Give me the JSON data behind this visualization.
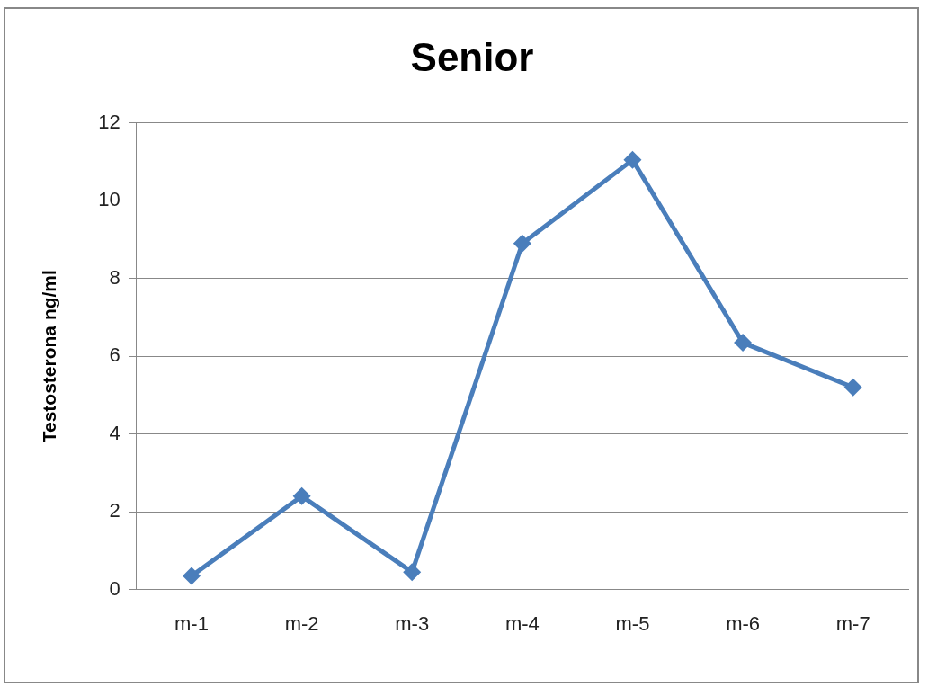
{
  "chart_data": {
    "type": "line",
    "title": "Senior",
    "ylabel": "Testosterona ng/ml",
    "categories": [
      "m-1",
      "m-2",
      "m-3",
      "m-4",
      "m-5",
      "m-6",
      "m-7"
    ],
    "series": [
      {
        "color": "#4a7ebb",
        "values": [
          0.35,
          2.4,
          0.45,
          8.9,
          11.05,
          6.35,
          5.2
        ]
      }
    ],
    "ylim": [
      0,
      12
    ],
    "yticks": [
      0,
      2,
      4,
      6,
      8,
      10,
      12
    ],
    "grid": "y",
    "legend": false,
    "marker": "diamond",
    "line_style": "solid"
  }
}
